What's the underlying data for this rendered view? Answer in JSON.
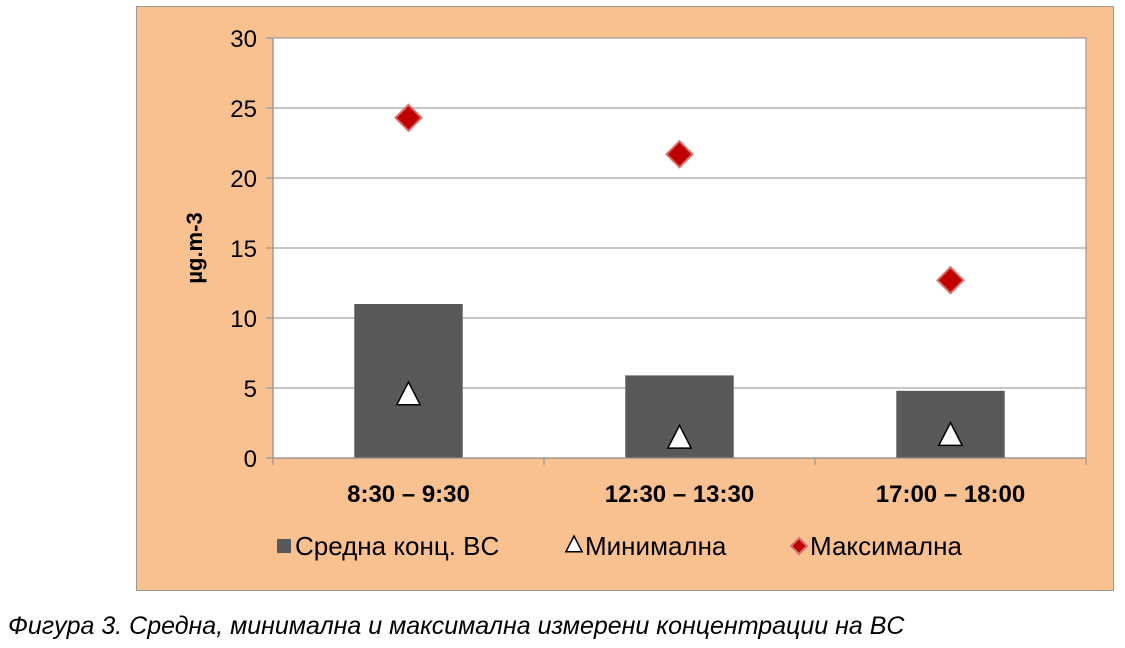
{
  "chart_data": {
    "type": "bar",
    "categories": [
      "8:30 – 9:30",
      "12:30 – 13:30",
      "17:00 – 18:00"
    ],
    "series": [
      {
        "name": "Средна конц. BC",
        "kind": "bar",
        "marker": "square",
        "values": [
          11.0,
          5.9,
          4.8
        ]
      },
      {
        "name": "Минимална",
        "kind": "marker",
        "marker": "triangle",
        "values": [
          4.5,
          1.4,
          1.6
        ]
      },
      {
        "name": "Максимална",
        "kind": "marker",
        "marker": "diamond",
        "values": [
          24.3,
          21.7,
          12.7
        ]
      }
    ],
    "ylabel": "µg.m-3",
    "ylim": [
      0,
      30
    ],
    "yticks": [
      0,
      5,
      10,
      15,
      20,
      25,
      30
    ],
    "grid": true,
    "legend": "bottom",
    "colors": {
      "background": "#f9c090",
      "plot_area": "#ffffff",
      "bar": "#595959",
      "triangle_fill": "#ffffff",
      "diamond": "#c00000",
      "grid": "#8c8c8c"
    }
  },
  "caption": "Фигура 3. Средна, минимална и максимална измерени концентрации на BC"
}
